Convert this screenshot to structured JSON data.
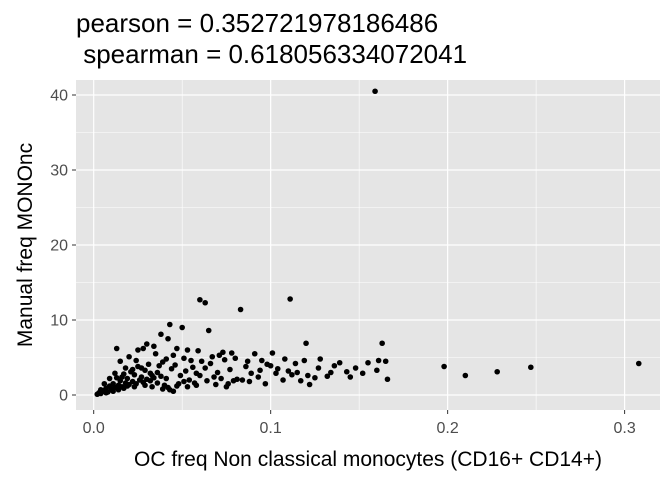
{
  "chart_data": {
    "type": "scatter",
    "title_lines": [
      "pearson = 0.352721978186486",
      " spearman = 0.618056334072041"
    ],
    "xlabel": "OC freq Non classical monocytes (CD16+ CD14+)",
    "ylabel": "Manual freq MONOnc",
    "xlim": [
      -0.01,
      0.32
    ],
    "ylim": [
      -2,
      42
    ],
    "x_ticks": [
      0.0,
      0.1,
      0.2,
      0.3
    ],
    "x_tick_labels": [
      "0.0",
      "0.1",
      "0.2",
      "0.3"
    ],
    "y_ticks": [
      0,
      10,
      20,
      30,
      40
    ],
    "y_tick_labels": [
      "0",
      "10",
      "20",
      "30",
      "40"
    ],
    "grid": true,
    "panel_background": "#e5e5e5",
    "gridline_color": "#ffffff",
    "point_color": "#000000",
    "points": [
      [
        0.159,
        40.5
      ],
      [
        0.06,
        12.7
      ],
      [
        0.063,
        12.3
      ],
      [
        0.111,
        12.8
      ],
      [
        0.083,
        11.4
      ],
      [
        0.043,
        9.4
      ],
      [
        0.05,
        9.0
      ],
      [
        0.065,
        8.6
      ],
      [
        0.038,
        8.1
      ],
      [
        0.042,
        7.5
      ],
      [
        0.03,
        6.8
      ],
      [
        0.028,
        6.2
      ],
      [
        0.034,
        6.5
      ],
      [
        0.013,
        6.2
      ],
      [
        0.025,
        6.0
      ],
      [
        0.047,
        6.2
      ],
      [
        0.053,
        6.0
      ],
      [
        0.059,
        5.9
      ],
      [
        0.073,
        5.7
      ],
      [
        0.078,
        5.6
      ],
      [
        0.091,
        5.5
      ],
      [
        0.101,
        5.6
      ],
      [
        0.12,
        6.9
      ],
      [
        0.128,
        4.8
      ],
      [
        0.139,
        4.3
      ],
      [
        0.163,
        6.9
      ],
      [
        0.161,
        4.6
      ],
      [
        0.165,
        4.5
      ],
      [
        0.155,
        4.3
      ],
      [
        0.148,
        3.6
      ],
      [
        0.143,
        3.1
      ],
      [
        0.134,
        3.0
      ],
      [
        0.132,
        2.5
      ],
      [
        0.16,
        3.3
      ],
      [
        0.166,
        2.1
      ],
      [
        0.152,
        2.9
      ],
      [
        0.119,
        4.6
      ],
      [
        0.114,
        4.2
      ],
      [
        0.108,
        4.8
      ],
      [
        0.104,
        3.5
      ],
      [
        0.098,
        4.1
      ],
      [
        0.094,
        3.3
      ],
      [
        0.089,
        2.9
      ],
      [
        0.086,
        3.8
      ],
      [
        0.081,
        2.1
      ],
      [
        0.077,
        3.4
      ],
      [
        0.074,
        4.7
      ],
      [
        0.07,
        3.0
      ],
      [
        0.068,
        2.4
      ],
      [
        0.066,
        4.2
      ],
      [
        0.063,
        3.6
      ],
      [
        0.058,
        2.9
      ],
      [
        0.055,
        4.6
      ],
      [
        0.052,
        3.2
      ],
      [
        0.049,
        2.6
      ],
      [
        0.046,
        4.0
      ],
      [
        0.044,
        3.5
      ],
      [
        0.041,
        2.2
      ],
      [
        0.039,
        4.4
      ],
      [
        0.036,
        3.0
      ],
      [
        0.033,
        2.6
      ],
      [
        0.031,
        4.1
      ],
      [
        0.029,
        3.3
      ],
      [
        0.027,
        2.4
      ],
      [
        0.025,
        3.8
      ],
      [
        0.023,
        2.7
      ],
      [
        0.021,
        3.1
      ],
      [
        0.019,
        2.2
      ],
      [
        0.017,
        2.8
      ],
      [
        0.015,
        1.9
      ],
      [
        0.013,
        2.3
      ],
      [
        0.011,
        1.5
      ],
      [
        0.009,
        1.2
      ],
      [
        0.007,
        0.9
      ],
      [
        0.005,
        0.5
      ],
      [
        0.003,
        0.3
      ],
      [
        0.002,
        0.1
      ],
      [
        0.004,
        0.2
      ],
      [
        0.006,
        0.6
      ],
      [
        0.008,
        0.4
      ],
      [
        0.01,
        0.8
      ],
      [
        0.012,
        1.0
      ],
      [
        0.014,
        1.3
      ],
      [
        0.016,
        1.1
      ],
      [
        0.018,
        1.6
      ],
      [
        0.02,
        1.4
      ],
      [
        0.022,
        1.8
      ],
      [
        0.024,
        1.5
      ],
      [
        0.026,
        2.0
      ],
      [
        0.028,
        1.7
      ],
      [
        0.03,
        2.1
      ],
      [
        0.032,
        1.9
      ],
      [
        0.034,
        2.3
      ],
      [
        0.036,
        1.6
      ],
      [
        0.038,
        2.5
      ],
      [
        0.04,
        1.3
      ],
      [
        0.042,
        1.0
      ],
      [
        0.045,
        0.5
      ],
      [
        0.048,
        1.5
      ],
      [
        0.051,
        1.8
      ],
      [
        0.054,
        2.0
      ],
      [
        0.057,
        1.6
      ],
      [
        0.06,
        2.6
      ],
      [
        0.064,
        1.9
      ],
      [
        0.069,
        1.4
      ],
      [
        0.072,
        2.2
      ],
      [
        0.076,
        1.5
      ],
      [
        0.079,
        1.9
      ],
      [
        0.084,
        2.0
      ],
      [
        0.088,
        1.8
      ],
      [
        0.093,
        2.4
      ],
      [
        0.097,
        1.5
      ],
      [
        0.103,
        2.9
      ],
      [
        0.107,
        2.0
      ],
      [
        0.112,
        2.7
      ],
      [
        0.117,
        1.9
      ],
      [
        0.122,
        1.4
      ],
      [
        0.125,
        2.3
      ],
      [
        0.015,
        4.5
      ],
      [
        0.02,
        5.1
      ],
      [
        0.024,
        4.6
      ],
      [
        0.018,
        3.6
      ],
      [
        0.035,
        5.5
      ],
      [
        0.045,
        5.3
      ],
      [
        0.051,
        4.9
      ],
      [
        0.012,
        2.9
      ],
      [
        0.009,
        2.2
      ],
      [
        0.006,
        1.5
      ],
      [
        0.016,
        2.4
      ],
      [
        0.022,
        3.4
      ],
      [
        0.027,
        3.6
      ],
      [
        0.032,
        2.9
      ],
      [
        0.037,
        3.9
      ],
      [
        0.041,
        4.8
      ],
      [
        0.056,
        3.7
      ],
      [
        0.061,
        4.5
      ],
      [
        0.067,
        5.1
      ],
      [
        0.071,
        5.3
      ],
      [
        0.08,
        4.9
      ],
      [
        0.087,
        4.5
      ],
      [
        0.095,
        4.6
      ],
      [
        0.1,
        3.9
      ],
      [
        0.11,
        3.2
      ],
      [
        0.115,
        3.0
      ],
      [
        0.121,
        2.6
      ],
      [
        0.127,
        3.6
      ],
      [
        0.136,
        3.9
      ],
      [
        0.145,
        2.4
      ],
      [
        0.198,
        3.8
      ],
      [
        0.21,
        2.6
      ],
      [
        0.228,
        3.1
      ],
      [
        0.247,
        3.7
      ],
      [
        0.308,
        4.2
      ],
      [
        0.004,
        0.7
      ],
      [
        0.007,
        0.3
      ],
      [
        0.011,
        0.5
      ],
      [
        0.014,
        0.7
      ],
      [
        0.017,
        0.9
      ],
      [
        0.019,
        1.2
      ],
      [
        0.023,
        1.1
      ],
      [
        0.029,
        1.3
      ],
      [
        0.033,
        1.1
      ],
      [
        0.039,
        0.8
      ],
      [
        0.043,
        0.7
      ],
      [
        0.047,
        1.2
      ],
      [
        0.053,
        1.1
      ],
      [
        0.058,
        1.3
      ],
      [
        0.075,
        1.1
      ]
    ]
  }
}
